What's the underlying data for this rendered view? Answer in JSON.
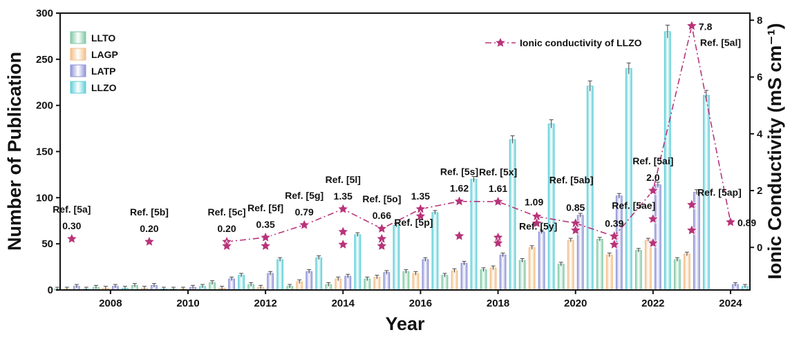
{
  "chart_data": {
    "type": "bar",
    "xlabel": "Year",
    "ylabel": "Number of Publication",
    "ylabel_right": "Ionic Conductivity (mS cm⁻¹)",
    "ylim": [
      0,
      300
    ],
    "ylim_right": [
      -1.5,
      8.25
    ],
    "yticks": [
      0,
      50,
      100,
      150,
      200,
      250,
      300
    ],
    "yticks_right": [
      0,
      2,
      4,
      6,
      8
    ],
    "xticks": [
      2008,
      2010,
      2012,
      2014,
      2016,
      2018,
      2020,
      2022,
      2024
    ],
    "x": [
      2007,
      2008,
      2009,
      2010,
      2011,
      2012,
      2013,
      2014,
      2015,
      2016,
      2017,
      2018,
      2019,
      2020,
      2021,
      2022,
      2023,
      2024
    ],
    "legend_position": "top-left",
    "series": [
      {
        "name": "LLTO",
        "color": "#7fc8a4",
        "values": [
          1,
          3,
          5,
          1,
          8,
          6,
          4,
          6,
          12,
          20,
          16,
          22,
          32,
          28,
          55,
          43,
          33,
          0
        ]
      },
      {
        "name": "LAGP",
        "color": "#f2be85",
        "values": [
          1,
          2,
          2,
          1,
          2,
          3,
          9,
          12,
          14,
          18,
          21,
          24,
          46,
          54,
          38,
          54,
          39,
          0
        ]
      },
      {
        "name": "LATP",
        "color": "#8e92d6",
        "values": [
          4,
          4,
          5,
          3,
          12,
          18,
          20,
          15,
          19,
          33,
          29,
          38,
          63,
          81,
          102,
          114,
          106,
          6
        ]
      },
      {
        "name": "LLZO",
        "color": "#5fcfd8",
        "values": [
          1,
          2,
          1,
          4,
          16,
          33,
          35,
          60,
          70,
          84,
          120,
          163,
          180,
          221,
          240,
          280,
          211,
          4
        ]
      }
    ],
    "conductivity": {
      "name": "Ionic conductivity of LLZO",
      "color": "#b8337a",
      "line_points": [
        {
          "x": 2011,
          "y": 0.2
        },
        {
          "x": 2012,
          "y": 0.35
        },
        {
          "x": 2013,
          "y": 0.79
        },
        {
          "x": 2014,
          "y": 1.35
        },
        {
          "x": 2015,
          "y": 0.66
        },
        {
          "x": 2016,
          "y": 1.35
        },
        {
          "x": 2017,
          "y": 1.62
        },
        {
          "x": 2018,
          "y": 1.61
        },
        {
          "x": 2019,
          "y": 1.09
        },
        {
          "x": 2020,
          "y": 0.85
        },
        {
          "x": 2021,
          "y": 0.39
        },
        {
          "x": 2022,
          "y": 2.0
        },
        {
          "x": 2023,
          "y": 7.8
        },
        {
          "x": 2024,
          "y": 0.89
        }
      ],
      "stars": [
        {
          "x": 2007,
          "y": 0.3
        },
        {
          "x": 2009,
          "y": 0.2
        },
        {
          "x": 2011,
          "y": 0.2
        },
        {
          "x": 2011,
          "y": 0.05
        },
        {
          "x": 2012,
          "y": 0.35
        },
        {
          "x": 2012,
          "y": 0.05
        },
        {
          "x": 2013,
          "y": 0.79
        },
        {
          "x": 2014,
          "y": 1.35
        },
        {
          "x": 2014,
          "y": 0.55
        },
        {
          "x": 2014,
          "y": 0.1
        },
        {
          "x": 2015,
          "y": 0.66
        },
        {
          "x": 2015,
          "y": 0.3
        },
        {
          "x": 2015,
          "y": 0.05
        },
        {
          "x": 2016,
          "y": 1.35
        },
        {
          "x": 2016,
          "y": 1.1
        },
        {
          "x": 2017,
          "y": 1.62
        },
        {
          "x": 2017,
          "y": 0.4
        },
        {
          "x": 2018,
          "y": 1.61
        },
        {
          "x": 2018,
          "y": 0.35
        },
        {
          "x": 2018,
          "y": 0.15
        },
        {
          "x": 2019,
          "y": 1.09
        },
        {
          "x": 2019,
          "y": 0.85
        },
        {
          "x": 2020,
          "y": 0.85
        },
        {
          "x": 2020,
          "y": 0.6
        },
        {
          "x": 2021,
          "y": 0.39
        },
        {
          "x": 2021,
          "y": 0.1
        },
        {
          "x": 2022,
          "y": 2.0
        },
        {
          "x": 2022,
          "y": 1.0
        },
        {
          "x": 2022,
          "y": 0.15
        },
        {
          "x": 2023,
          "y": 7.8
        },
        {
          "x": 2023,
          "y": 1.5
        },
        {
          "x": 2023,
          "y": 0.6
        },
        {
          "x": 2024,
          "y": 0.89
        }
      ],
      "annotations": [
        {
          "ref": "Ref. [5a]",
          "value": "0.30",
          "x": 2007,
          "y": 0.3
        },
        {
          "ref": "Ref. [5b]",
          "value": "0.20",
          "x": 2009,
          "y": 0.2
        },
        {
          "ref": "Ref. [5c]",
          "value": "0.20",
          "x": 2011,
          "y": 0.2
        },
        {
          "ref": "Ref. [5f]",
          "value": "0.35",
          "x": 2012,
          "y": 0.35
        },
        {
          "ref": "Ref. [5g]",
          "value": "0.79",
          "x": 2013,
          "y": 0.79
        },
        {
          "ref": "Ref. [5l]",
          "value": "1.35",
          "x": 2014,
          "y": 1.35
        },
        {
          "ref": "Ref. [5o]",
          "value": "0.66",
          "x": 2015,
          "y": 0.66
        },
        {
          "ref": "Ref. [5p]",
          "value": "1.35",
          "x": 2016,
          "y": 1.35
        },
        {
          "ref": "Ref. [5s]",
          "value": "1.62",
          "x": 2017,
          "y": 1.62
        },
        {
          "ref": "Ref. [5x]",
          "value": "1.61",
          "x": 2018,
          "y": 1.61
        },
        {
          "ref": "Ref. [5y]",
          "value": "1.09",
          "x": 2019,
          "y": 1.09
        },
        {
          "ref": "Ref. [5ab]",
          "value": "0.85",
          "x": 2020,
          "y": 0.85
        },
        {
          "ref": "Ref. [5ae]",
          "value": "0.39",
          "x": 2021,
          "y": 0.39
        },
        {
          "ref": "Ref. [5ai]",
          "value": "2.0",
          "x": 2022,
          "y": 2.0
        },
        {
          "ref": "Ref. [5al]",
          "value": "7.8",
          "x": 2023,
          "y": 7.8
        },
        {
          "ref": "Ref. [5ap]",
          "value": "0.89",
          "x": 2024,
          "y": 0.89
        }
      ]
    }
  }
}
